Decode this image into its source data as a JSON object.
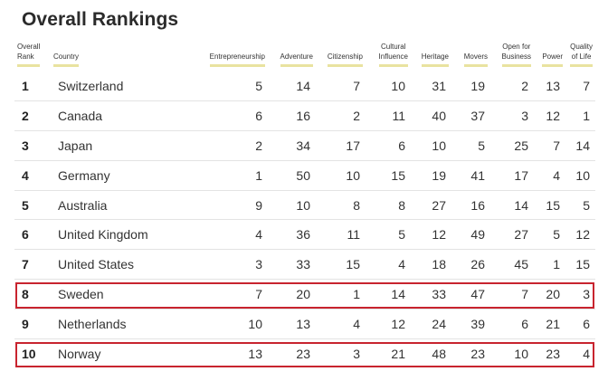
{
  "title": "Overall Rankings",
  "columns": {
    "rank_line1": "Overall",
    "rank_line2": "Rank",
    "country": "Country",
    "entrepreneurship": "Entrepreneurship",
    "adventure": "Adventure",
    "citizenship": "Citizenship",
    "cultural_line1": "Cultural",
    "cultural_line2": "Influence",
    "heritage": "Heritage",
    "movers": "Movers",
    "open_line1": "Open for",
    "open_line2": "Business",
    "power": "Power",
    "quality_line1": "Quality",
    "quality_line2": "of Life"
  },
  "rows": [
    {
      "rank": "1",
      "country": "Switzerland",
      "ent": "5",
      "adv": "14",
      "cit": "7",
      "cul": "10",
      "her": "31",
      "mov": "19",
      "opb": "2",
      "pow": "13",
      "qol": "7"
    },
    {
      "rank": "2",
      "country": "Canada",
      "ent": "6",
      "adv": "16",
      "cit": "2",
      "cul": "11",
      "her": "40",
      "mov": "37",
      "opb": "3",
      "pow": "12",
      "qol": "1"
    },
    {
      "rank": "3",
      "country": "Japan",
      "ent": "2",
      "adv": "34",
      "cit": "17",
      "cul": "6",
      "her": "10",
      "mov": "5",
      "opb": "25",
      "pow": "7",
      "qol": "14"
    },
    {
      "rank": "4",
      "country": "Germany",
      "ent": "1",
      "adv": "50",
      "cit": "10",
      "cul": "15",
      "her": "19",
      "mov": "41",
      "opb": "17",
      "pow": "4",
      "qol": "10"
    },
    {
      "rank": "5",
      "country": "Australia",
      "ent": "9",
      "adv": "10",
      "cit": "8",
      "cul": "8",
      "her": "27",
      "mov": "16",
      "opb": "14",
      "pow": "15",
      "qol": "5"
    },
    {
      "rank": "6",
      "country": "United Kingdom",
      "ent": "4",
      "adv": "36",
      "cit": "11",
      "cul": "5",
      "her": "12",
      "mov": "49",
      "opb": "27",
      "pow": "5",
      "qol": "12"
    },
    {
      "rank": "7",
      "country": "United States",
      "ent": "3",
      "adv": "33",
      "cit": "15",
      "cul": "4",
      "her": "18",
      "mov": "26",
      "opb": "45",
      "pow": "1",
      "qol": "15"
    },
    {
      "rank": "8",
      "country": "Sweden",
      "ent": "7",
      "adv": "20",
      "cit": "1",
      "cul": "14",
      "her": "33",
      "mov": "47",
      "opb": "7",
      "pow": "20",
      "qol": "3"
    },
    {
      "rank": "9",
      "country": "Netherlands",
      "ent": "10",
      "adv": "13",
      "cit": "4",
      "cul": "12",
      "her": "24",
      "mov": "39",
      "opb": "6",
      "pow": "21",
      "qol": "6"
    },
    {
      "rank": "10",
      "country": "Norway",
      "ent": "13",
      "adv": "23",
      "cit": "3",
      "cul": "21",
      "her": "48",
      "mov": "23",
      "opb": "10",
      "pow": "23",
      "qol": "4"
    }
  ],
  "highlight_color": "#c8242f",
  "header_underline_color": "#e9e3a0"
}
